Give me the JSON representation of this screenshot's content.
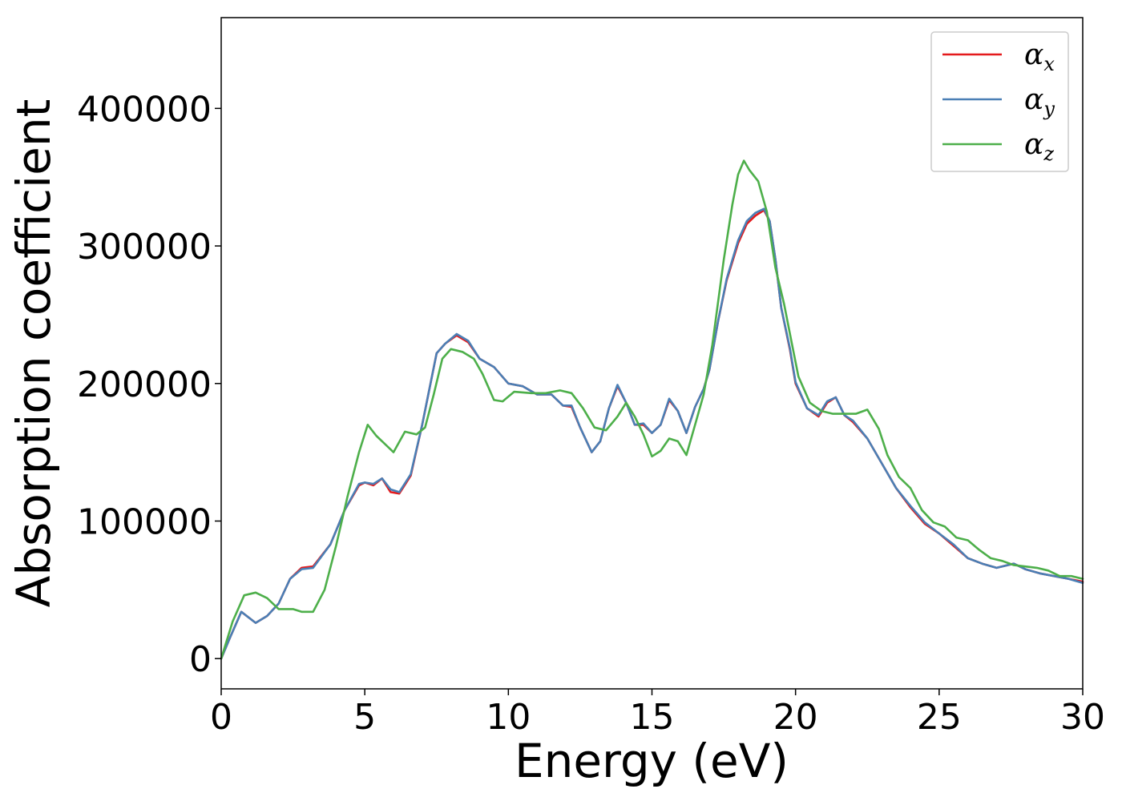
{
  "chart_data": {
    "type": "line",
    "title": "",
    "xlabel": "Energy (eV)",
    "ylabel": "Absorption coefficient",
    "xlim": [
      0,
      30
    ],
    "ylim": [
      -22000,
      466000
    ],
    "xticks": [
      0,
      5,
      10,
      15,
      20,
      25,
      30
    ],
    "yticks": [
      0,
      100000,
      200000,
      300000,
      400000
    ],
    "grid": false,
    "legend_position": "top-right",
    "series": [
      {
        "name": "α",
        "subscript": "x",
        "color": "#e41a1c",
        "points": [
          [
            0,
            0
          ],
          [
            0.3,
            15000
          ],
          [
            0.7,
            34000
          ],
          [
            1.2,
            26000
          ],
          [
            1.6,
            31000
          ],
          [
            2.0,
            40000
          ],
          [
            2.4,
            58000
          ],
          [
            2.8,
            66000
          ],
          [
            3.2,
            67000
          ],
          [
            3.8,
            83000
          ],
          [
            4.3,
            108000
          ],
          [
            4.8,
            126000
          ],
          [
            5.0,
            128000
          ],
          [
            5.3,
            126000
          ],
          [
            5.6,
            131000
          ],
          [
            5.9,
            121000
          ],
          [
            6.2,
            120000
          ],
          [
            6.6,
            133000
          ],
          [
            7.0,
            170000
          ],
          [
            7.5,
            222000
          ],
          [
            7.8,
            229000
          ],
          [
            8.2,
            235000
          ],
          [
            8.6,
            230000
          ],
          [
            9.0,
            218000
          ],
          [
            9.5,
            212000
          ],
          [
            10.0,
            200000
          ],
          [
            10.5,
            198000
          ],
          [
            11.0,
            192000
          ],
          [
            11.5,
            192000
          ],
          [
            11.9,
            184000
          ],
          [
            12.2,
            183000
          ],
          [
            12.5,
            168000
          ],
          [
            12.9,
            150000
          ],
          [
            13.2,
            158000
          ],
          [
            13.5,
            182000
          ],
          [
            13.8,
            198000
          ],
          [
            14.1,
            186000
          ],
          [
            14.4,
            170000
          ],
          [
            14.7,
            170000
          ],
          [
            15.0,
            164000
          ],
          [
            15.3,
            170000
          ],
          [
            15.6,
            188000
          ],
          [
            15.9,
            180000
          ],
          [
            16.2,
            164000
          ],
          [
            16.5,
            183000
          ],
          [
            16.8,
            196000
          ],
          [
            17.0,
            210000
          ],
          [
            17.3,
            245000
          ],
          [
            17.6,
            275000
          ],
          [
            18.0,
            302000
          ],
          [
            18.3,
            316000
          ],
          [
            18.6,
            322000
          ],
          [
            18.9,
            326000
          ],
          [
            19.1,
            318000
          ],
          [
            19.3,
            290000
          ],
          [
            19.5,
            255000
          ],
          [
            19.8,
            225000
          ],
          [
            20.0,
            200000
          ],
          [
            20.4,
            182000
          ],
          [
            20.8,
            176000
          ],
          [
            21.1,
            186000
          ],
          [
            21.4,
            190000
          ],
          [
            21.7,
            177000
          ],
          [
            22.0,
            172000
          ],
          [
            22.5,
            160000
          ],
          [
            23.0,
            142000
          ],
          [
            23.5,
            124000
          ],
          [
            24.0,
            110000
          ],
          [
            24.5,
            98000
          ],
          [
            25.0,
            91000
          ],
          [
            25.5,
            82000
          ],
          [
            26.0,
            73000
          ],
          [
            26.5,
            69000
          ],
          [
            27.0,
            66000
          ],
          [
            27.6,
            69000
          ],
          [
            28.0,
            65000
          ],
          [
            28.5,
            62000
          ],
          [
            29.0,
            60000
          ],
          [
            29.5,
            58000
          ],
          [
            30.0,
            56000
          ]
        ]
      },
      {
        "name": "α",
        "subscript": "y",
        "color": "#4a7fb5",
        "points": [
          [
            0,
            0
          ],
          [
            0.3,
            15000
          ],
          [
            0.7,
            34000
          ],
          [
            1.2,
            26000
          ],
          [
            1.6,
            31000
          ],
          [
            2.0,
            40000
          ],
          [
            2.4,
            58000
          ],
          [
            2.8,
            65000
          ],
          [
            3.2,
            66000
          ],
          [
            3.8,
            83000
          ],
          [
            4.3,
            108000
          ],
          [
            4.8,
            127000
          ],
          [
            5.0,
            128000
          ],
          [
            5.3,
            127000
          ],
          [
            5.6,
            131000
          ],
          [
            5.9,
            123000
          ],
          [
            6.2,
            121000
          ],
          [
            6.6,
            134000
          ],
          [
            7.0,
            170000
          ],
          [
            7.5,
            222000
          ],
          [
            7.8,
            229000
          ],
          [
            8.2,
            236000
          ],
          [
            8.6,
            231000
          ],
          [
            9.0,
            218000
          ],
          [
            9.5,
            212000
          ],
          [
            10.0,
            200000
          ],
          [
            10.5,
            198000
          ],
          [
            11.0,
            192000
          ],
          [
            11.5,
            192000
          ],
          [
            11.9,
            184000
          ],
          [
            12.2,
            184000
          ],
          [
            12.5,
            168000
          ],
          [
            12.9,
            150000
          ],
          [
            13.2,
            158000
          ],
          [
            13.5,
            182000
          ],
          [
            13.8,
            199000
          ],
          [
            14.1,
            186000
          ],
          [
            14.4,
            170000
          ],
          [
            14.7,
            171000
          ],
          [
            15.0,
            164000
          ],
          [
            15.3,
            170000
          ],
          [
            15.6,
            189000
          ],
          [
            15.9,
            180000
          ],
          [
            16.2,
            164000
          ],
          [
            16.5,
            183000
          ],
          [
            16.8,
            196000
          ],
          [
            17.0,
            210000
          ],
          [
            17.3,
            245000
          ],
          [
            17.6,
            276000
          ],
          [
            18.0,
            304000
          ],
          [
            18.3,
            318000
          ],
          [
            18.6,
            324000
          ],
          [
            18.9,
            327000
          ],
          [
            19.1,
            318000
          ],
          [
            19.3,
            290000
          ],
          [
            19.5,
            255000
          ],
          [
            19.8,
            226000
          ],
          [
            20.0,
            201000
          ],
          [
            20.4,
            182000
          ],
          [
            20.8,
            177000
          ],
          [
            21.1,
            187000
          ],
          [
            21.4,
            190000
          ],
          [
            21.7,
            177000
          ],
          [
            22.0,
            173000
          ],
          [
            22.5,
            160000
          ],
          [
            23.0,
            142000
          ],
          [
            23.5,
            124000
          ],
          [
            24.0,
            111000
          ],
          [
            24.5,
            99000
          ],
          [
            25.0,
            91000
          ],
          [
            25.5,
            83000
          ],
          [
            26.0,
            73000
          ],
          [
            26.5,
            69000
          ],
          [
            27.0,
            66000
          ],
          [
            27.6,
            69000
          ],
          [
            28.0,
            65000
          ],
          [
            28.5,
            62000
          ],
          [
            29.0,
            60000
          ],
          [
            29.5,
            58000
          ],
          [
            30.0,
            55000
          ]
        ]
      },
      {
        "name": "α",
        "subscript": "z",
        "color": "#4daf4a",
        "points": [
          [
            0,
            0
          ],
          [
            0.4,
            27000
          ],
          [
            0.8,
            46000
          ],
          [
            1.2,
            48000
          ],
          [
            1.6,
            44000
          ],
          [
            2.0,
            36000
          ],
          [
            2.5,
            36000
          ],
          [
            2.8,
            34000
          ],
          [
            3.2,
            34000
          ],
          [
            3.6,
            50000
          ],
          [
            4.0,
            82000
          ],
          [
            4.4,
            118000
          ],
          [
            4.8,
            150000
          ],
          [
            5.1,
            170000
          ],
          [
            5.4,
            162000
          ],
          [
            5.7,
            156000
          ],
          [
            6.0,
            150000
          ],
          [
            6.4,
            165000
          ],
          [
            6.8,
            163000
          ],
          [
            7.1,
            168000
          ],
          [
            7.4,
            192000
          ],
          [
            7.7,
            218000
          ],
          [
            8.0,
            225000
          ],
          [
            8.4,
            223000
          ],
          [
            8.8,
            218000
          ],
          [
            9.1,
            207000
          ],
          [
            9.5,
            188000
          ],
          [
            9.8,
            187000
          ],
          [
            10.2,
            194000
          ],
          [
            10.8,
            193000
          ],
          [
            11.3,
            193000
          ],
          [
            11.8,
            195000
          ],
          [
            12.2,
            193000
          ],
          [
            12.6,
            182000
          ],
          [
            13.0,
            168000
          ],
          [
            13.4,
            166000
          ],
          [
            13.8,
            176000
          ],
          [
            14.1,
            186000
          ],
          [
            14.4,
            176000
          ],
          [
            14.7,
            163000
          ],
          [
            15.0,
            147000
          ],
          [
            15.3,
            151000
          ],
          [
            15.6,
            160000
          ],
          [
            15.9,
            158000
          ],
          [
            16.2,
            148000
          ],
          [
            16.5,
            170000
          ],
          [
            16.8,
            192000
          ],
          [
            17.1,
            228000
          ],
          [
            17.5,
            290000
          ],
          [
            17.8,
            330000
          ],
          [
            18.0,
            352000
          ],
          [
            18.2,
            362000
          ],
          [
            18.4,
            355000
          ],
          [
            18.7,
            347000
          ],
          [
            19.0,
            325000
          ],
          [
            19.3,
            284000
          ],
          [
            19.6,
            258000
          ],
          [
            19.9,
            226000
          ],
          [
            20.1,
            205000
          ],
          [
            20.5,
            186000
          ],
          [
            20.9,
            180000
          ],
          [
            21.3,
            178000
          ],
          [
            21.7,
            178000
          ],
          [
            22.1,
            178000
          ],
          [
            22.5,
            181000
          ],
          [
            22.9,
            167000
          ],
          [
            23.2,
            148000
          ],
          [
            23.6,
            132000
          ],
          [
            24.0,
            124000
          ],
          [
            24.4,
            108000
          ],
          [
            24.8,
            99000
          ],
          [
            25.2,
            96000
          ],
          [
            25.6,
            88000
          ],
          [
            26.0,
            86000
          ],
          [
            26.4,
            79000
          ],
          [
            26.8,
            73000
          ],
          [
            27.2,
            71000
          ],
          [
            27.6,
            68000
          ],
          [
            28.0,
            67000
          ],
          [
            28.4,
            66000
          ],
          [
            28.8,
            64000
          ],
          [
            29.2,
            60000
          ],
          [
            29.6,
            60000
          ],
          [
            30.0,
            58000
          ]
        ]
      }
    ]
  }
}
